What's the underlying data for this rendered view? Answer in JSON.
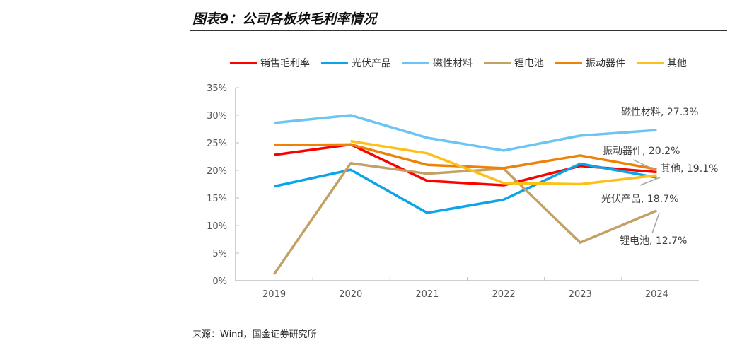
{
  "header": {
    "title": "图表9：公司各板块毛利率情况"
  },
  "footer": {
    "source": "来源：Wind，国金证券研究所"
  },
  "chart_data": {
    "type": "line",
    "title": "",
    "xlabel": "",
    "ylabel": "",
    "categories": [
      "2019",
      "2020",
      "2021",
      "2022",
      "2023",
      "2024"
    ],
    "ylim": [
      0,
      35
    ],
    "yticks": [
      "0%",
      "5%",
      "10%",
      "15%",
      "20%",
      "25%",
      "30%",
      "35%"
    ],
    "grid": false,
    "legend": "top",
    "series": [
      {
        "name": "销售毛利率",
        "color": "#ff0000",
        "values": [
          22.8,
          24.7,
          18.1,
          17.3,
          20.8,
          19.7
        ]
      },
      {
        "name": "光伏产品",
        "color": "#0ca4e8",
        "values": [
          17.1,
          20.1,
          12.3,
          14.7,
          21.2,
          18.7
        ]
      },
      {
        "name": "磁性材料",
        "color": "#6cc4f2",
        "values": [
          28.6,
          30.0,
          25.9,
          23.6,
          26.3,
          27.3
        ]
      },
      {
        "name": "锂电池",
        "color": "#c3a165",
        "values": [
          1.2,
          21.3,
          19.4,
          20.3,
          6.9,
          12.7
        ]
      },
      {
        "name": "振动器件",
        "color": "#ee8209",
        "values": [
          24.6,
          24.7,
          21.0,
          20.4,
          22.7,
          20.2
        ]
      },
      {
        "name": "其他",
        "color": "#fcc019",
        "values": [
          null,
          25.3,
          23.1,
          17.7,
          17.5,
          19.1
        ]
      }
    ],
    "annotations": [
      {
        "series": "磁性材料",
        "text": "磁性材料, 27.3%"
      },
      {
        "series": "振动器件",
        "text": "振动器件, 20.2%"
      },
      {
        "series": "其他",
        "text": "其他, 19.1%"
      },
      {
        "series": "光伏产品",
        "text": "光伏产品, 18.7%"
      },
      {
        "series": "锂电池",
        "text": "锂电池, 12.7%"
      }
    ]
  }
}
